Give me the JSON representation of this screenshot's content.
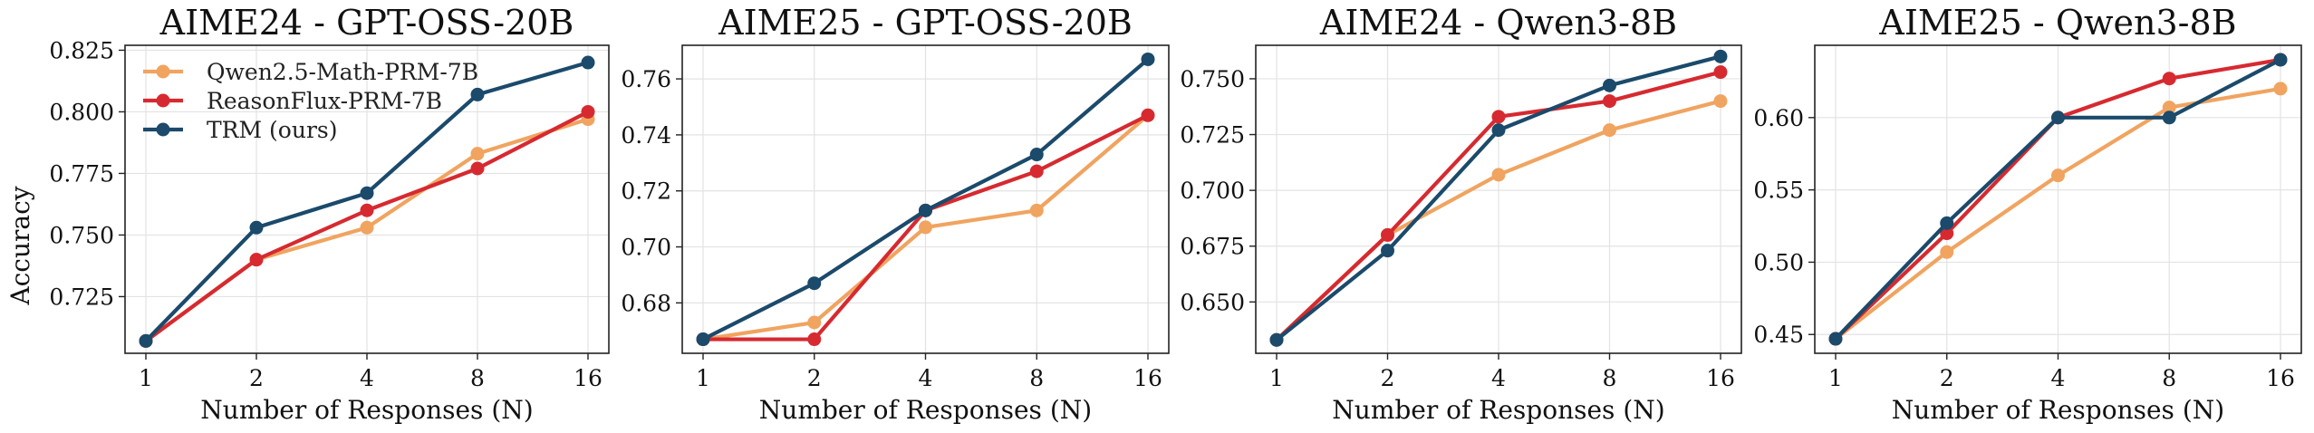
{
  "ylabel_shared": "Accuracy",
  "colors": {
    "qwen_prm": "#F0A460",
    "reasonflux": "#D62A30",
    "trm": "#1B4A6B"
  },
  "chart_data": [
    {
      "type": "line",
      "title": "AIME24 - GPT-OSS-20B",
      "xlabel": "Number of Responses (N)",
      "ylabel": "Accuracy",
      "x": [
        1,
        2,
        4,
        8,
        16
      ],
      "x_scale": "log2",
      "xticks": [
        "1",
        "2",
        "4",
        "8",
        "16"
      ],
      "ylim": [
        0.702,
        0.827
      ],
      "yticks": [
        "0.725",
        "0.750",
        "0.775",
        "0.800",
        "0.825"
      ],
      "grid": true,
      "legend": "upper-left",
      "series": [
        {
          "name": "Qwen2.5-Math-PRM-7B",
          "color": "#F0A460",
          "values": [
            0.707,
            0.74,
            0.753,
            0.783,
            0.797
          ]
        },
        {
          "name": "ReasonFlux-PRM-7B",
          "color": "#D62A30",
          "values": [
            0.707,
            0.74,
            0.76,
            0.777,
            0.8
          ]
        },
        {
          "name": "TRM (ours)",
          "color": "#1B4A6B",
          "values": [
            0.707,
            0.753,
            0.767,
            0.807,
            0.82
          ]
        }
      ]
    },
    {
      "type": "line",
      "title": "AIME25 - GPT-OSS-20B",
      "xlabel": "Number of Responses (N)",
      "x": [
        1,
        2,
        4,
        8,
        16
      ],
      "x_scale": "log2",
      "xticks": [
        "1",
        "2",
        "4",
        "8",
        "16"
      ],
      "ylim": [
        0.662,
        0.772
      ],
      "yticks": [
        "0.68",
        "0.70",
        "0.72",
        "0.74",
        "0.76"
      ],
      "grid": true,
      "series": [
        {
          "name": "Qwen2.5-Math-PRM-7B",
          "color": "#F0A460",
          "values": [
            0.667,
            0.673,
            0.707,
            0.713,
            0.747
          ]
        },
        {
          "name": "ReasonFlux-PRM-7B",
          "color": "#D62A30",
          "values": [
            0.667,
            0.667,
            0.713,
            0.727,
            0.747
          ]
        },
        {
          "name": "TRM (ours)",
          "color": "#1B4A6B",
          "values": [
            0.667,
            0.687,
            0.713,
            0.733,
            0.767
          ]
        }
      ]
    },
    {
      "type": "line",
      "title": "AIME24 - Qwen3-8B",
      "xlabel": "Number of Responses (N)",
      "x": [
        1,
        2,
        4,
        8,
        16
      ],
      "x_scale": "log2",
      "xticks": [
        "1",
        "2",
        "4",
        "8",
        "16"
      ],
      "ylim": [
        0.627,
        0.765
      ],
      "yticks": [
        "0.650",
        "0.675",
        "0.700",
        "0.725",
        "0.750"
      ],
      "grid": true,
      "series": [
        {
          "name": "Qwen2.5-Math-PRM-7B",
          "color": "#F0A460",
          "values": [
            0.633,
            0.68,
            0.707,
            0.727,
            0.74
          ]
        },
        {
          "name": "ReasonFlux-PRM-7B",
          "color": "#D62A30",
          "values": [
            0.633,
            0.68,
            0.733,
            0.74,
            0.753
          ]
        },
        {
          "name": "TRM (ours)",
          "color": "#1B4A6B",
          "values": [
            0.633,
            0.673,
            0.727,
            0.747,
            0.76
          ]
        }
      ]
    },
    {
      "type": "line",
      "title": "AIME25 - Qwen3-8B",
      "xlabel": "Number of Responses (N)",
      "x": [
        1,
        2,
        4,
        8,
        16
      ],
      "x_scale": "log2",
      "xticks": [
        "1",
        "2",
        "4",
        "8",
        "16"
      ],
      "ylim": [
        0.437,
        0.65
      ],
      "yticks": [
        "0.45",
        "0.50",
        "0.55",
        "0.60"
      ],
      "grid": true,
      "series": [
        {
          "name": "Qwen2.5-Math-PRM-7B",
          "color": "#F0A460",
          "values": [
            0.447,
            0.507,
            0.56,
            0.607,
            0.62
          ]
        },
        {
          "name": "ReasonFlux-PRM-7B",
          "color": "#D62A30",
          "values": [
            0.447,
            0.52,
            0.6,
            0.627,
            0.64
          ]
        },
        {
          "name": "TRM (ours)",
          "color": "#1B4A6B",
          "values": [
            0.447,
            0.527,
            0.6,
            0.6,
            0.64
          ]
        }
      ]
    }
  ]
}
